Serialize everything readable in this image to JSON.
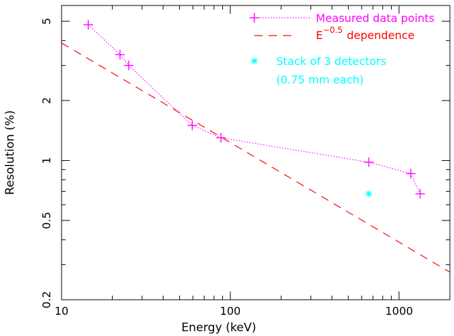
{
  "chart_data": {
    "type": "line",
    "xlabel": "Energy (keV)",
    "ylabel": "Resolution (%)",
    "x_scale": "log",
    "y_scale": "log",
    "xlim": [
      10,
      2000
    ],
    "ylim": [
      0.2,
      6
    ],
    "x_ticks": [
      {
        "value": 10,
        "label": "10"
      },
      {
        "value": 100,
        "label": "100"
      },
      {
        "value": 1000,
        "label": "1000"
      }
    ],
    "y_ticks": [
      {
        "value": 0.2,
        "label": "0.2"
      },
      {
        "value": 0.5,
        "label": "0.5"
      },
      {
        "value": 1,
        "label": "1"
      },
      {
        "value": 2,
        "label": "2"
      },
      {
        "value": 5,
        "label": "5"
      }
    ],
    "grid": false,
    "legend_position": "top-right",
    "series": [
      {
        "name": "Measured data points",
        "style": "dotted-line-with-plus-markers",
        "color": "#ff00ff",
        "points": [
          {
            "x": 14.4,
            "y": 4.8
          },
          {
            "x": 22.2,
            "y": 3.4
          },
          {
            "x": 25.0,
            "y": 3.0
          },
          {
            "x": 59.5,
            "y": 1.5
          },
          {
            "x": 88.0,
            "y": 1.3
          },
          {
            "x": 662,
            "y": 0.98
          },
          {
            "x": 1173,
            "y": 0.86
          },
          {
            "x": 1332,
            "y": 0.68
          }
        ]
      },
      {
        "name_base": "E",
        "name_exponent": "−0.5",
        "name_suffix": "dependence",
        "style": "dashed-line",
        "color": "#ff0000",
        "coefficient": 12.3,
        "exponent": -0.5
      },
      {
        "name_line1": "Stack of 3 detectors",
        "name_line2": "(0.75 mm each)",
        "style": "star-marker",
        "color": "#00ffff",
        "points": [
          {
            "x": 662,
            "y": 0.68
          }
        ]
      }
    ]
  }
}
